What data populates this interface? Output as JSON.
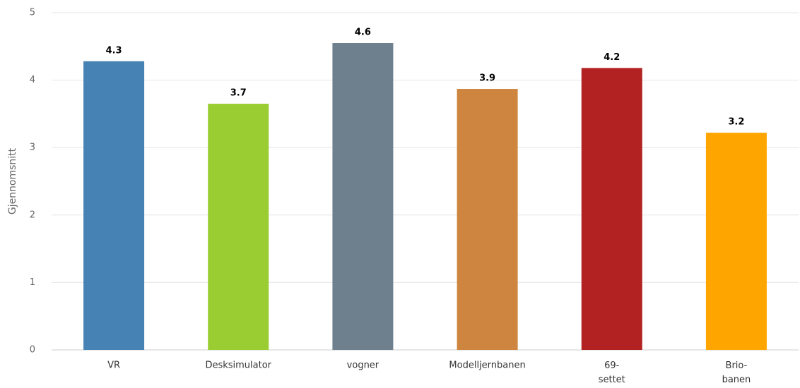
{
  "chart_data": {
    "type": "bar",
    "y_label": "Gjennomsnitt",
    "categories": [
      "VR",
      "Desksimulator",
      "vogner",
      "Modelljernbanen",
      "69-settet",
      "Brio-banen"
    ],
    "values": [
      4.28,
      3.65,
      4.55,
      3.87,
      4.18,
      3.22
    ],
    "value_labels": [
      "4.3",
      "3.7",
      "4.6",
      "3.9",
      "4.2",
      "3.2"
    ],
    "colors": [
      "#4682b4",
      "#9acd32",
      "#6e7f8e",
      "#cd853f",
      "#b22222",
      "#ffa500"
    ],
    "ylim": [
      0,
      5
    ],
    "yticks": [
      0,
      1,
      2,
      3,
      4,
      5
    ],
    "grid": true
  }
}
